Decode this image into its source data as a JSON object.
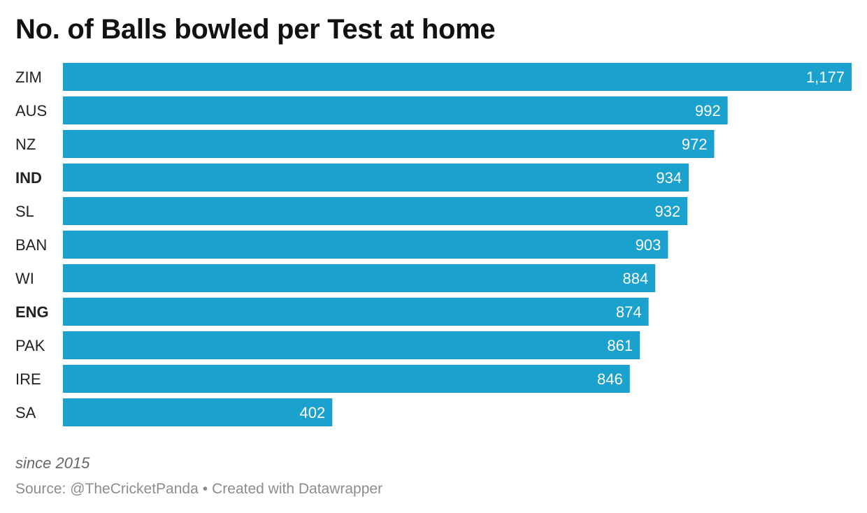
{
  "title": "No. of Balls bowled per Test at home",
  "notes": "since 2015",
  "footer": {
    "source": "Source: @TheCricketPanda",
    "separator": "•",
    "credit": "Created with Datawrapper"
  },
  "chart_data": {
    "type": "bar",
    "orientation": "horizontal",
    "title": "No. of Balls bowled per Test at home",
    "categories": [
      "ZIM",
      "AUS",
      "NZ",
      "IND",
      "SL",
      "BAN",
      "WI",
      "ENG",
      "PAK",
      "IRE",
      "SA"
    ],
    "values": [
      1177,
      992,
      972,
      934,
      932,
      903,
      884,
      874,
      861,
      846,
      402
    ],
    "value_labels": [
      "1,177",
      "992",
      "972",
      "934",
      "932",
      "903",
      "884",
      "874",
      "861",
      "846",
      "402"
    ],
    "highlighted_categories": [
      "IND",
      "ENG"
    ],
    "xlim": [
      0,
      1177
    ],
    "grid": false,
    "legend": "none",
    "bar_color": "#1aa1ce",
    "value_label_color": "#ffffff"
  }
}
